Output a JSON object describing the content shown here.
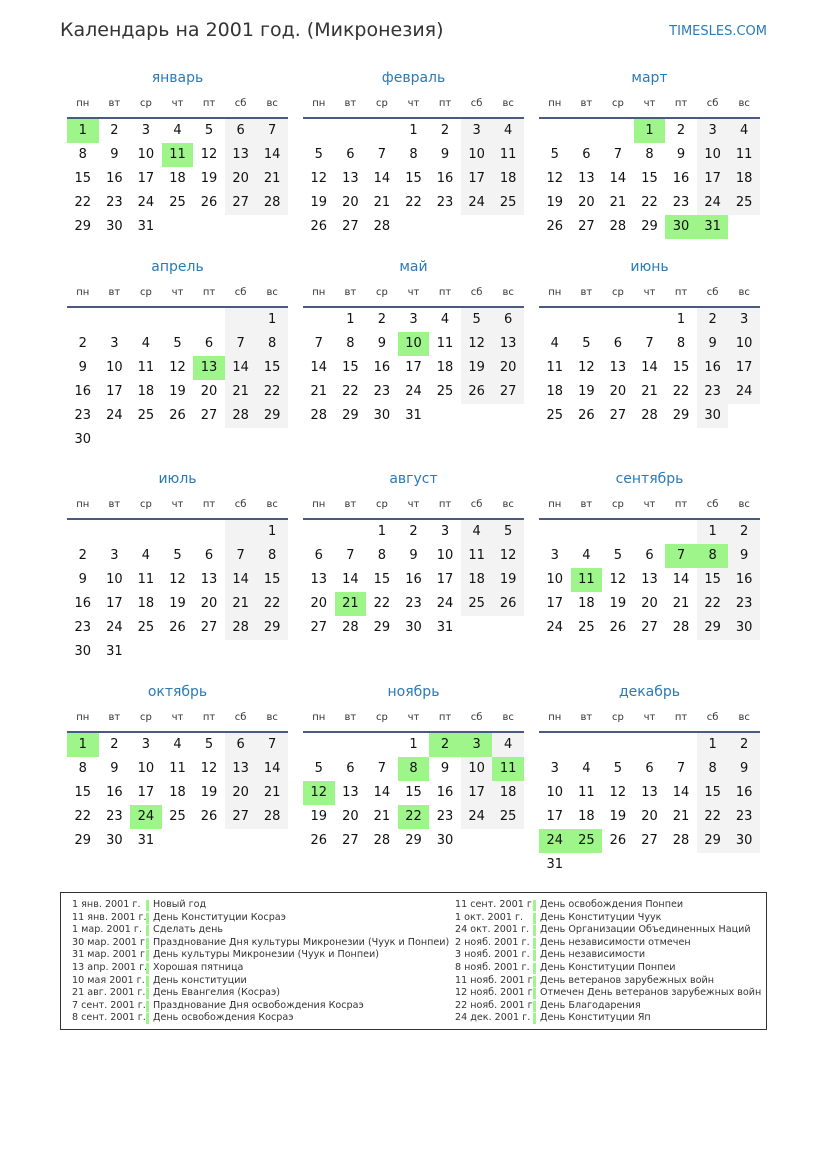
{
  "header": {
    "title": "Календарь на 2001 год. (Микронезия)",
    "site": "TIMESLES.COM"
  },
  "colors": {
    "holiday": "#9ef58a",
    "weekend": "#f3f3f3",
    "accent": "#2a7ab8"
  },
  "weekdays": [
    "пн",
    "вт",
    "ср",
    "чт",
    "пт",
    "сб",
    "вс"
  ],
  "months": [
    {
      "name": "январь",
      "offset": 0,
      "days": 31,
      "holidays": [
        1,
        11
      ]
    },
    {
      "name": "февраль",
      "offset": 3,
      "days": 28,
      "holidays": []
    },
    {
      "name": "март",
      "offset": 3,
      "days": 31,
      "holidays": [
        1,
        30,
        31
      ]
    },
    {
      "name": "апрель",
      "offset": 6,
      "days": 30,
      "holidays": [
        13
      ]
    },
    {
      "name": "май",
      "offset": 1,
      "days": 31,
      "holidays": [
        10
      ]
    },
    {
      "name": "июнь",
      "offset": 4,
      "days": 30,
      "holidays": []
    },
    {
      "name": "июль",
      "offset": 6,
      "days": 31,
      "holidays": []
    },
    {
      "name": "август",
      "offset": 2,
      "days": 31,
      "holidays": [
        21
      ]
    },
    {
      "name": "сентябрь",
      "offset": 5,
      "days": 30,
      "holidays": [
        7,
        8,
        11
      ]
    },
    {
      "name": "октябрь",
      "offset": 0,
      "days": 31,
      "holidays": [
        1,
        24
      ]
    },
    {
      "name": "ноябрь",
      "offset": 3,
      "days": 30,
      "holidays": [
        2,
        3,
        8,
        11,
        12,
        22
      ]
    },
    {
      "name": "декабрь",
      "offset": 5,
      "days": 31,
      "holidays": [
        24,
        25
      ]
    }
  ],
  "legend": {
    "left": [
      {
        "date": "1 янв. 2001 г.",
        "name": "Новый год"
      },
      {
        "date": "11 янв. 2001 г.",
        "name": "День Конституции Косраэ"
      },
      {
        "date": "1 мар. 2001 г.",
        "name": "Сделать день"
      },
      {
        "date": "30 мар. 2001 г.",
        "name": "Празднование Дня культуры Микронезии (Чуук и Понпеи)"
      },
      {
        "date": "31 мар. 2001 г.",
        "name": "День культуры Микронезии (Чуук и Понпеи)"
      },
      {
        "date": "13 апр. 2001 г.",
        "name": "Хорошая пятница"
      },
      {
        "date": "10 мая 2001 г.",
        "name": "День конституции"
      },
      {
        "date": "21 авг. 2001 г.",
        "name": "День Евангелия (Косраэ)"
      },
      {
        "date": "7 сент. 2001 г.",
        "name": "Празднование Дня освобождения Косраэ"
      },
      {
        "date": "8 сент. 2001 г.",
        "name": "День освобождения Косраэ"
      }
    ],
    "right": [
      {
        "date": "11 сент. 2001 г.",
        "name": "День освобождения Понпеи"
      },
      {
        "date": "1 окт. 2001 г.",
        "name": "День Конституции Чуук"
      },
      {
        "date": "24 окт. 2001 г.",
        "name": "День Организации Объединенных Наций"
      },
      {
        "date": "2 нояб. 2001 г.",
        "name": "День независимости отмечен"
      },
      {
        "date": "3 нояб. 2001 г.",
        "name": "День независимости"
      },
      {
        "date": "8 нояб. 2001 г.",
        "name": "День Конституции Понпеи"
      },
      {
        "date": "11 нояб. 2001 г.",
        "name": "День ветеранов зарубежных войн"
      },
      {
        "date": "12 нояб. 2001 г.",
        "name": "Отмечен День ветеранов зарубежных войн"
      },
      {
        "date": "22 нояб. 2001 г.",
        "name": "День Благодарения"
      },
      {
        "date": "24 дек. 2001 г.",
        "name": "День Конституции Яп"
      }
    ]
  }
}
